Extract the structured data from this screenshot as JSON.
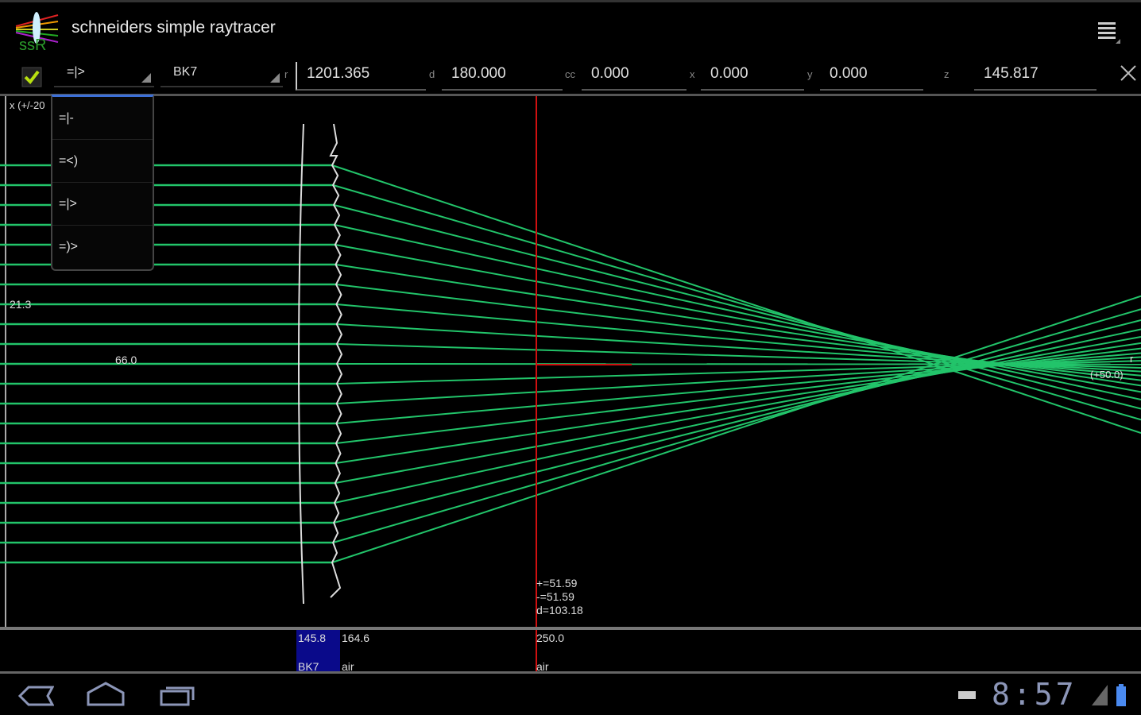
{
  "app": {
    "title": "schneiders simple raytracer",
    "logo_text": "ssR"
  },
  "toolbar": {
    "enabled": true,
    "element_type": "=|>",
    "material": "BK7",
    "r_label": "r",
    "r_value": "1201.365",
    "d_label": "d",
    "d_value": "180.000",
    "cc_label": "cc",
    "cc_value": "0.000",
    "x_label": "x",
    "x_value": "0.000",
    "y_label": "y",
    "y_value": "0.000",
    "z_label": "z",
    "z_value": "145.817"
  },
  "dropdown": {
    "options": [
      "=|-",
      "=<)",
      "=|>",
      "=)>"
    ]
  },
  "canvas": {
    "x_scale_label": "x (+/-20",
    "height_label": "21.3",
    "width_label": "66.0",
    "r_axis_label": "r",
    "r_range_label": "(+50.0)",
    "measure": {
      "plus": "+=51.59",
      "minus": "-=51.59",
      "d": "d=103.18"
    },
    "ray_color": "#22c46a",
    "marker_color": "#d01010"
  },
  "surfaces": [
    {
      "z": "145.8",
      "medium": "BK7",
      "selected": true
    },
    {
      "z": "164.6",
      "medium": "air"
    },
    {
      "z": "250.0",
      "medium": "air"
    }
  ],
  "statusbar": {
    "time": "8:57"
  }
}
